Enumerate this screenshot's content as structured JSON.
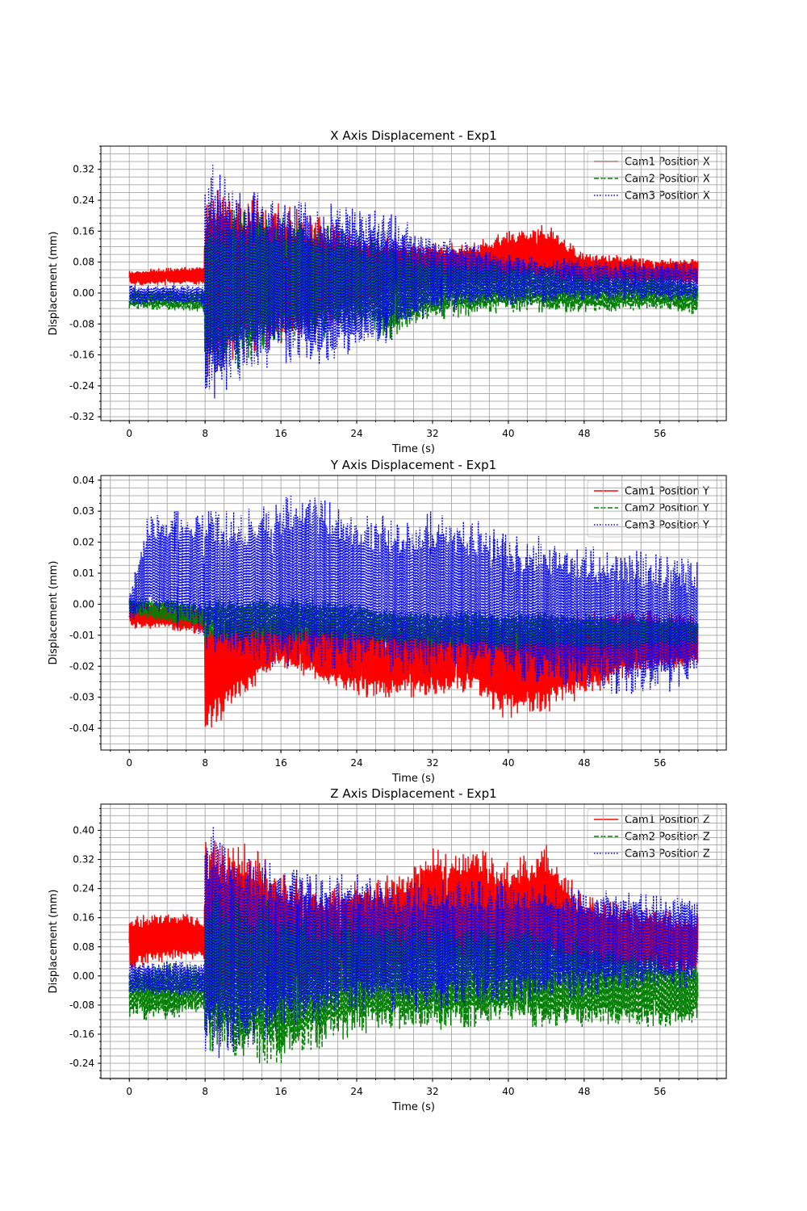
{
  "chart_data": [
    {
      "type": "line",
      "title": "X Axis Displacement - Exp1",
      "xlabel": "Time (s)",
      "ylabel": "Displacement (mm)",
      "xlim": [
        -3,
        63
      ],
      "ylim": [
        -0.33,
        0.38
      ],
      "xticks": [
        0,
        8,
        16,
        24,
        32,
        40,
        48,
        56
      ],
      "xtick_labels": [
        "0",
        "8",
        "16",
        "24",
        "32",
        "40",
        "48",
        "56"
      ],
      "yticks": [
        -0.32,
        -0.24,
        -0.16,
        -0.08,
        0.0,
        0.08,
        0.16,
        0.24,
        0.32
      ],
      "ytick_labels": [
        "-0.32",
        "-0.24",
        "-0.16",
        "-0.08",
        "0.00",
        "0.08",
        "0.16",
        "0.24",
        "0.32"
      ],
      "grid": true,
      "legend_position": "top-right",
      "series": [
        {
          "name": "Cam1 Position X",
          "color": "#ff0000",
          "style": "solid",
          "x": [
            0,
            7.9,
            8.0,
            12,
            16,
            20,
            24,
            28,
            32,
            36,
            40,
            44,
            48,
            52,
            56,
            60
          ],
          "min": [
            0.02,
            0.02,
            -0.22,
            -0.16,
            -0.13,
            -0.1,
            -0.06,
            -0.02,
            0.0,
            0.01,
            0.02,
            0.02,
            0.02,
            0.02,
            0.02,
            0.02
          ],
          "max": [
            0.06,
            0.07,
            0.27,
            0.26,
            0.23,
            0.2,
            0.16,
            0.14,
            0.13,
            0.13,
            0.16,
            0.18,
            0.1,
            0.1,
            0.09,
            0.09
          ]
        },
        {
          "name": "Cam2 Position X",
          "color": "#008000",
          "style": "dashed",
          "x": [
            0,
            7.9,
            8.0,
            12,
            16,
            20,
            24,
            28,
            32,
            36,
            40,
            44,
            48,
            52,
            56,
            60
          ],
          "min": [
            -0.04,
            -0.05,
            -0.23,
            -0.19,
            -0.13,
            -0.12,
            -0.1,
            -0.12,
            -0.07,
            -0.06,
            -0.05,
            -0.05,
            -0.05,
            -0.05,
            -0.04,
            -0.06
          ],
          "max": [
            0.01,
            0.01,
            0.23,
            0.21,
            0.2,
            0.18,
            0.16,
            0.12,
            0.1,
            0.09,
            0.08,
            0.07,
            0.05,
            0.05,
            0.05,
            0.03
          ]
        },
        {
          "name": "Cam3 Position X",
          "color": "#0000ff",
          "style": "dotted",
          "x": [
            0,
            7.9,
            8.0,
            12,
            16,
            20,
            24,
            28,
            32,
            36,
            40,
            44,
            48,
            52,
            56,
            60
          ],
          "min": [
            -0.03,
            -0.03,
            -0.29,
            -0.22,
            -0.18,
            -0.19,
            -0.16,
            -0.12,
            -0.05,
            -0.04,
            -0.03,
            -0.03,
            -0.02,
            -0.02,
            -0.02,
            -0.02
          ],
          "max": [
            0.02,
            0.02,
            0.35,
            0.27,
            0.24,
            0.23,
            0.24,
            0.2,
            0.15,
            0.13,
            0.1,
            0.09,
            0.09,
            0.08,
            0.08,
            0.08
          ]
        }
      ]
    },
    {
      "type": "line",
      "title": "Y Axis Displacement - Exp1",
      "xlabel": "Time (s)",
      "ylabel": "Displacement (mm)",
      "xlim": [
        -3,
        63
      ],
      "ylim": [
        -0.047,
        0.0415
      ],
      "xticks": [
        0,
        8,
        16,
        24,
        32,
        40,
        48,
        56
      ],
      "xtick_labels": [
        "0",
        "8",
        "16",
        "24",
        "32",
        "40",
        "48",
        "56"
      ],
      "yticks": [
        -0.04,
        -0.03,
        -0.02,
        -0.01,
        0.0,
        0.01,
        0.02,
        0.03,
        0.04
      ],
      "ytick_labels": [
        "-0.04",
        "-0.03",
        "-0.02",
        "-0.01",
        "0.00",
        "0.01",
        "0.02",
        "0.03",
        "0.04"
      ],
      "grid": true,
      "legend_position": "top-right",
      "series": [
        {
          "name": "Cam1 Position Y",
          "color": "#ff0000",
          "style": "solid",
          "x": [
            0,
            4,
            7.9,
            8.0,
            12,
            16,
            20,
            24,
            28,
            32,
            36,
            40,
            44,
            48,
            52,
            56,
            60
          ],
          "min": [
            -0.008,
            -0.008,
            -0.01,
            -0.043,
            -0.03,
            -0.02,
            -0.025,
            -0.03,
            -0.03,
            -0.03,
            -0.028,
            -0.038,
            -0.035,
            -0.03,
            -0.025,
            -0.022,
            -0.02
          ],
          "max": [
            0.002,
            0.0,
            0.0,
            -0.002,
            -0.002,
            -0.004,
            -0.004,
            -0.003,
            -0.004,
            -0.005,
            -0.004,
            -0.003,
            -0.003,
            -0.002,
            -0.001,
            -0.002,
            -0.004
          ]
        },
        {
          "name": "Cam2 Position Y",
          "color": "#008000",
          "style": "dashed",
          "x": [
            0,
            4,
            7.9,
            8.0,
            12,
            16,
            20,
            24,
            28,
            32,
            36,
            40,
            44,
            48,
            52,
            56,
            60
          ],
          "min": [
            -0.004,
            -0.006,
            -0.008,
            -0.012,
            -0.012,
            -0.012,
            -0.012,
            -0.012,
            -0.013,
            -0.014,
            -0.014,
            -0.015,
            -0.015,
            -0.015,
            -0.015,
            -0.014,
            -0.013
          ],
          "max": [
            0.002,
            0.002,
            0.0,
            0.002,
            0.002,
            0.002,
            0.002,
            0.0,
            -0.002,
            -0.002,
            -0.002,
            -0.002,
            -0.002,
            -0.003,
            -0.004,
            -0.004,
            -0.005
          ]
        },
        {
          "name": "Cam3 Position Y",
          "color": "#0000ff",
          "style": "dotted",
          "x": [
            0,
            2,
            4,
            7.9,
            8.0,
            12,
            16,
            20,
            24,
            28,
            32,
            36,
            40,
            44,
            48,
            52,
            56,
            60
          ],
          "min": [
            -0.005,
            -0.005,
            -0.007,
            -0.01,
            -0.014,
            -0.02,
            -0.02,
            -0.02,
            -0.022,
            -0.022,
            -0.022,
            -0.022,
            -0.024,
            -0.026,
            -0.028,
            -0.029,
            -0.029,
            -0.026
          ],
          "max": [
            0.003,
            0.029,
            0.03,
            0.03,
            0.03,
            0.03,
            0.035,
            0.036,
            0.03,
            0.028,
            0.03,
            0.028,
            0.022,
            0.022,
            0.019,
            0.018,
            0.016,
            0.014
          ]
        }
      ]
    },
    {
      "type": "line",
      "title": "Z Axis Displacement - Exp1",
      "xlabel": "Time (s)",
      "ylabel": "Displacement (mm)",
      "xlim": [
        -3,
        63
      ],
      "ylim": [
        -0.282,
        0.472
      ],
      "xticks": [
        0,
        8,
        16,
        24,
        32,
        40,
        48,
        56
      ],
      "xtick_labels": [
        "0",
        "8",
        "16",
        "24",
        "32",
        "40",
        "48",
        "56"
      ],
      "yticks": [
        -0.24,
        -0.16,
        -0.08,
        0.0,
        0.08,
        0.16,
        0.24,
        0.32,
        0.4
      ],
      "ytick_labels": [
        "-0.24",
        "-0.16",
        "-0.08",
        "0.00",
        "0.08",
        "0.16",
        "0.24",
        "0.32",
        "0.40"
      ],
      "grid": true,
      "legend_position": "top-right",
      "series": [
        {
          "name": "Cam1 Position Z",
          "color": "#ff0000",
          "style": "solid",
          "x": [
            0,
            4,
            7.9,
            8.0,
            12,
            16,
            20,
            24,
            28,
            32,
            36,
            40,
            44,
            48,
            52,
            56,
            60
          ],
          "min": [
            0.02,
            0.04,
            0.04,
            -0.12,
            -0.1,
            -0.08,
            -0.06,
            -0.04,
            -0.02,
            0.0,
            0.0,
            0.0,
            0.0,
            0.0,
            0.0,
            0.0,
            0.0
          ],
          "max": [
            0.16,
            0.18,
            0.16,
            0.38,
            0.38,
            0.28,
            0.25,
            0.26,
            0.28,
            0.35,
            0.36,
            0.31,
            0.36,
            0.22,
            0.2,
            0.18,
            0.17
          ]
        },
        {
          "name": "Cam2 Position Z",
          "color": "#008000",
          "style": "dashed",
          "x": [
            0,
            4,
            7.9,
            8.0,
            12,
            16,
            20,
            24,
            28,
            32,
            36,
            40,
            44,
            48,
            52,
            56,
            60
          ],
          "min": [
            -0.12,
            -0.12,
            -0.1,
            -0.2,
            -0.24,
            -0.24,
            -0.2,
            -0.16,
            -0.15,
            -0.15,
            -0.14,
            -0.14,
            -0.14,
            -0.14,
            -0.14,
            -0.14,
            -0.13
          ],
          "max": [
            0.02,
            0.04,
            0.02,
            0.25,
            0.22,
            0.2,
            0.18,
            0.16,
            0.16,
            0.15,
            0.15,
            0.14,
            0.13,
            0.1,
            0.08,
            0.06,
            0.03
          ]
        },
        {
          "name": "Cam3 Position Z",
          "color": "#0000ff",
          "style": "dotted",
          "x": [
            0,
            4,
            7.9,
            8.0,
            12,
            16,
            20,
            24,
            28,
            32,
            36,
            40,
            44,
            48,
            52,
            56,
            60
          ],
          "min": [
            -0.05,
            -0.06,
            -0.06,
            -0.24,
            -0.2,
            -0.16,
            -0.14,
            -0.1,
            -0.1,
            -0.1,
            -0.08,
            -0.08,
            -0.06,
            -0.06,
            -0.04,
            -0.04,
            -0.03
          ],
          "max": [
            0.04,
            0.04,
            0.04,
            0.43,
            0.34,
            0.3,
            0.28,
            0.28,
            0.25,
            0.26,
            0.26,
            0.26,
            0.25,
            0.24,
            0.23,
            0.22,
            0.22
          ]
        }
      ]
    }
  ]
}
